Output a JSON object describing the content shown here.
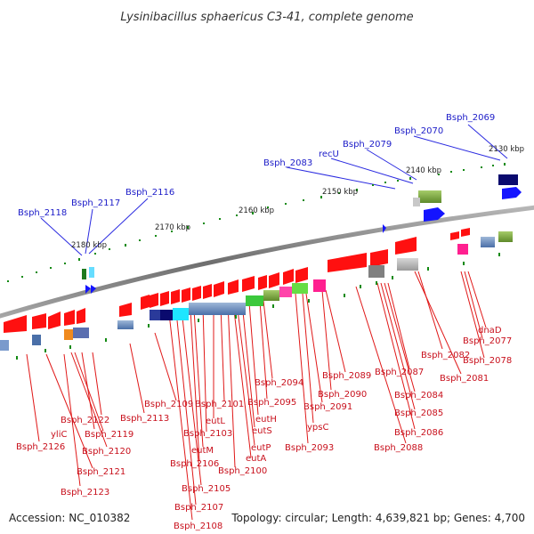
{
  "title": "Lysinibacillus sphaericus C3-41, complete genome",
  "accession": "Accession: NC_010382",
  "topology": "Topology: circular; Length: 4,639,821 bp; Genes: 4,700",
  "colors": {
    "backbone": "#808080",
    "forward_gene": "#1414ff",
    "reverse_gene": "#ff0000",
    "blue_label": "#1c1cc8",
    "red_label": "#c8101c",
    "tick": "#138a13"
  },
  "ticks": [
    {
      "label": "2130 kbp"
    },
    {
      "label": "2140 kbp"
    },
    {
      "label": "2150 kbp"
    },
    {
      "label": "2160 kbp"
    },
    {
      "label": "2170 kbp"
    },
    {
      "label": "2180 kbp"
    }
  ],
  "forward_labels": [
    {
      "text": "Bsph_2069"
    },
    {
      "text": "Bsph_2070"
    },
    {
      "text": "Bsph_2079"
    },
    {
      "text": "recU"
    },
    {
      "text": "Bsph_2083"
    },
    {
      "text": "Bsph_2116"
    },
    {
      "text": "Bsph_2117"
    },
    {
      "text": "Bsph_2118"
    }
  ],
  "reverse_labels": [
    {
      "text": "dnaD"
    },
    {
      "text": "Bsph_2077"
    },
    {
      "text": "Bsph_2078"
    },
    {
      "text": "Bsph_2082"
    },
    {
      "text": "Bsph_2081"
    },
    {
      "text": "Bsph_2087"
    },
    {
      "text": "Bsph_2084"
    },
    {
      "text": "Bsph_2085"
    },
    {
      "text": "Bsph_2086"
    },
    {
      "text": "Bsph_2088"
    },
    {
      "text": "Bsph_2089"
    },
    {
      "text": "Bsph_2090"
    },
    {
      "text": "Bsph_2091"
    },
    {
      "text": "ypsC"
    },
    {
      "text": "Bsph_2093"
    },
    {
      "text": "Bsph_2094"
    },
    {
      "text": "Bsph_2095"
    },
    {
      "text": "eutH"
    },
    {
      "text": "eutS"
    },
    {
      "text": "eutP"
    },
    {
      "text": "eutA"
    },
    {
      "text": "Bsph_2100"
    },
    {
      "text": "Bsph_2101"
    },
    {
      "text": "eutL"
    },
    {
      "text": "Bsph_2103"
    },
    {
      "text": "eutM"
    },
    {
      "text": "Bsph_2106"
    },
    {
      "text": "Bsph_2105"
    },
    {
      "text": "Bsph_2107"
    },
    {
      "text": "Bsph_2108"
    },
    {
      "text": "Bsph_2109"
    },
    {
      "text": "Bsph_2113"
    },
    {
      "text": "Bsph_2122"
    },
    {
      "text": "yliC"
    },
    {
      "text": "Bsph_2119"
    },
    {
      "text": "Bsph_2120"
    },
    {
      "text": "Bsph_2126"
    },
    {
      "text": "Bsph_2121"
    },
    {
      "text": "Bsph_2123"
    }
  ]
}
